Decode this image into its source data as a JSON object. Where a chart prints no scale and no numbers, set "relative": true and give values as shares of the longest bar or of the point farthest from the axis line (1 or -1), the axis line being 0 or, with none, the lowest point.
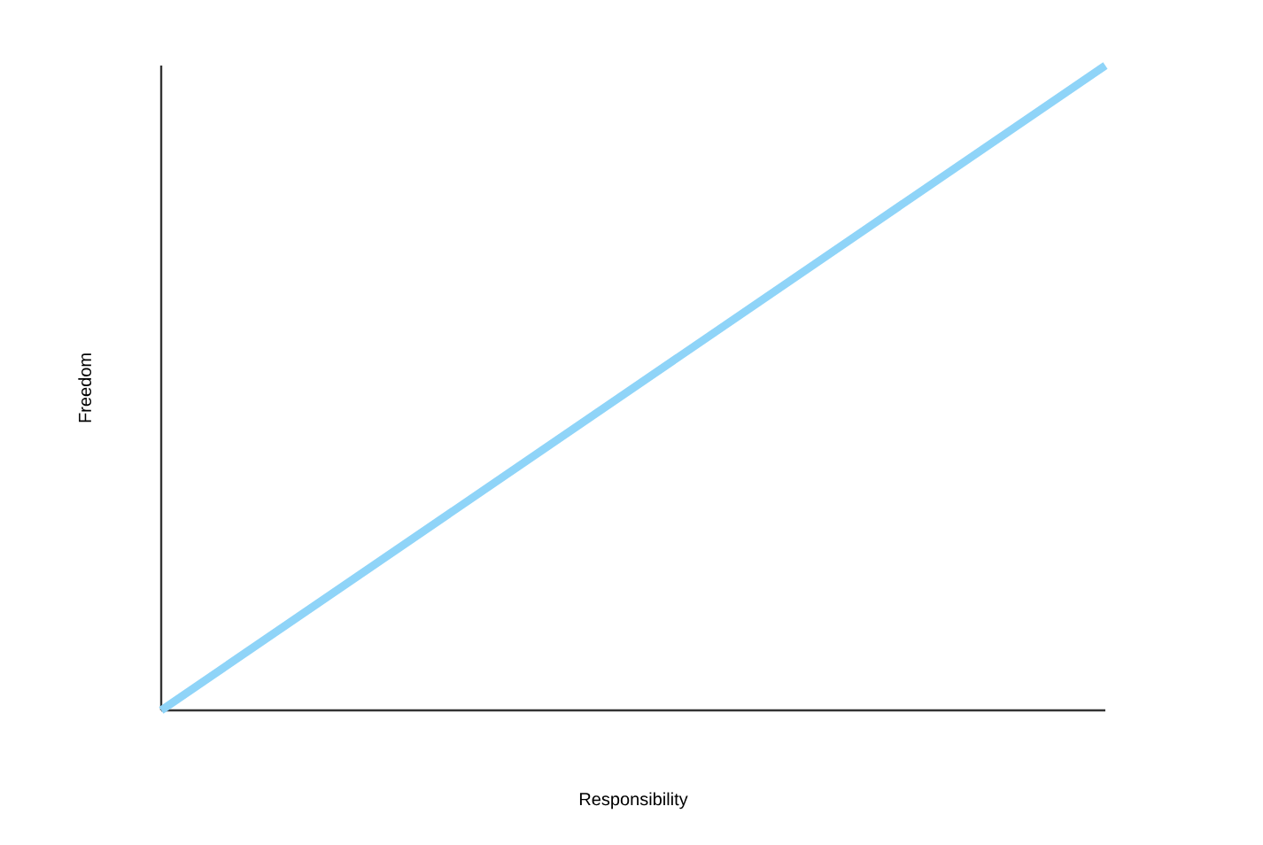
{
  "chart_data": {
    "type": "line",
    "xlabel": "Responsibility",
    "ylabel": "Freedom",
    "categories": [
      null,
      null
    ],
    "values": [
      0,
      1
    ],
    "color": "#8fd4f8",
    "relative": true
  }
}
